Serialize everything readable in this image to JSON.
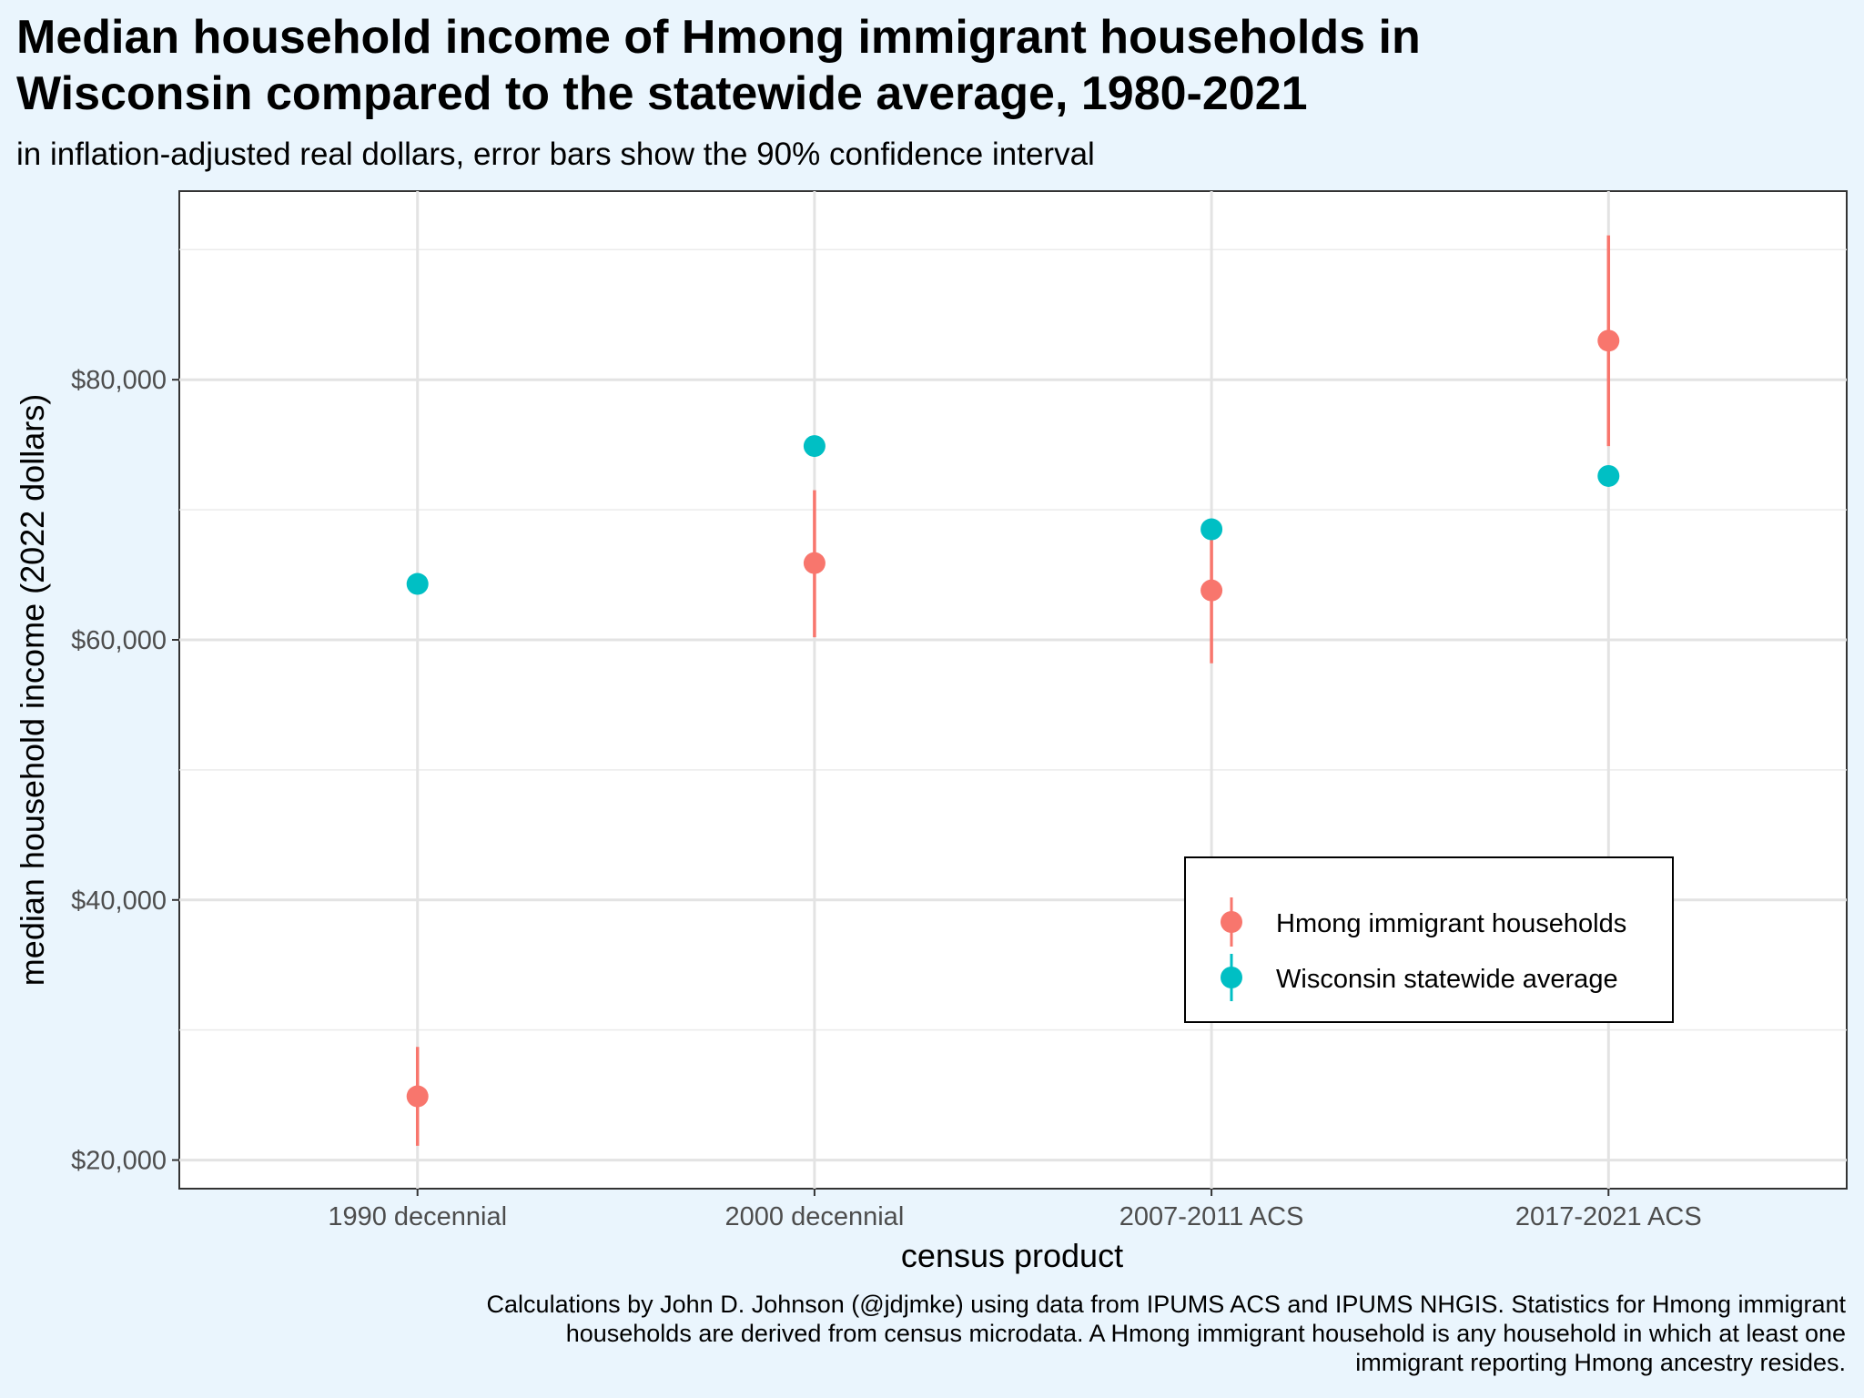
{
  "header": {
    "title_line1": "Median household income of Hmong immigrant households in",
    "title_line2": "Wisconsin compared to the statewide average, 1980-2021",
    "subtitle": "in inflation-adjusted real dollars, error bars show the 90% confidence interval"
  },
  "caption": {
    "line1": "Calculations by John D. Johnson (@jdjmke) using data from IPUMS ACS and IPUMS NHGIS. Statistics for Hmong immigrant",
    "line2": "households are derived from census microdata. A Hmong immigrant household is any household in which at least one",
    "line3": "immigrant reporting Hmong ancestry resides."
  },
  "chart_data": {
    "type": "scatter",
    "title": "Median household income of Hmong immigrant households in Wisconsin compared to the statewide average, 1980-2021",
    "subtitle": "in inflation-adjusted real dollars, error bars show the 90% confidence interval",
    "xlabel": "census product",
    "ylabel": "median household income (2022 dollars)",
    "categories": [
      "1990 decennial",
      "2000 decennial",
      "2007-2011 ACS",
      "2017-2021 ACS"
    ],
    "ylim": [
      17800,
      94500
    ],
    "y_ticks": [
      20000,
      40000,
      60000,
      80000
    ],
    "y_tick_labels": [
      "$20,000",
      "$40,000",
      "$60,000",
      "$80,000"
    ],
    "grid": true,
    "legend_position": "bottom-right, inside",
    "series": [
      {
        "name": "Hmong immigrant households",
        "color": "#f8766d",
        "values": [
          24900,
          65900,
          63800,
          83000
        ],
        "lower": [
          21100,
          60200,
          58200,
          74900
        ],
        "upper": [
          28700,
          71500,
          68200,
          91100
        ]
      },
      {
        "name": "Wisconsin statewide average",
        "color": "#00bfc4",
        "values": [
          64300,
          74900,
          68500,
          72600
        ],
        "lower": [
          64300,
          74900,
          68500,
          72600
        ],
        "upper": [
          64300,
          74900,
          68500,
          72600
        ]
      }
    ]
  }
}
